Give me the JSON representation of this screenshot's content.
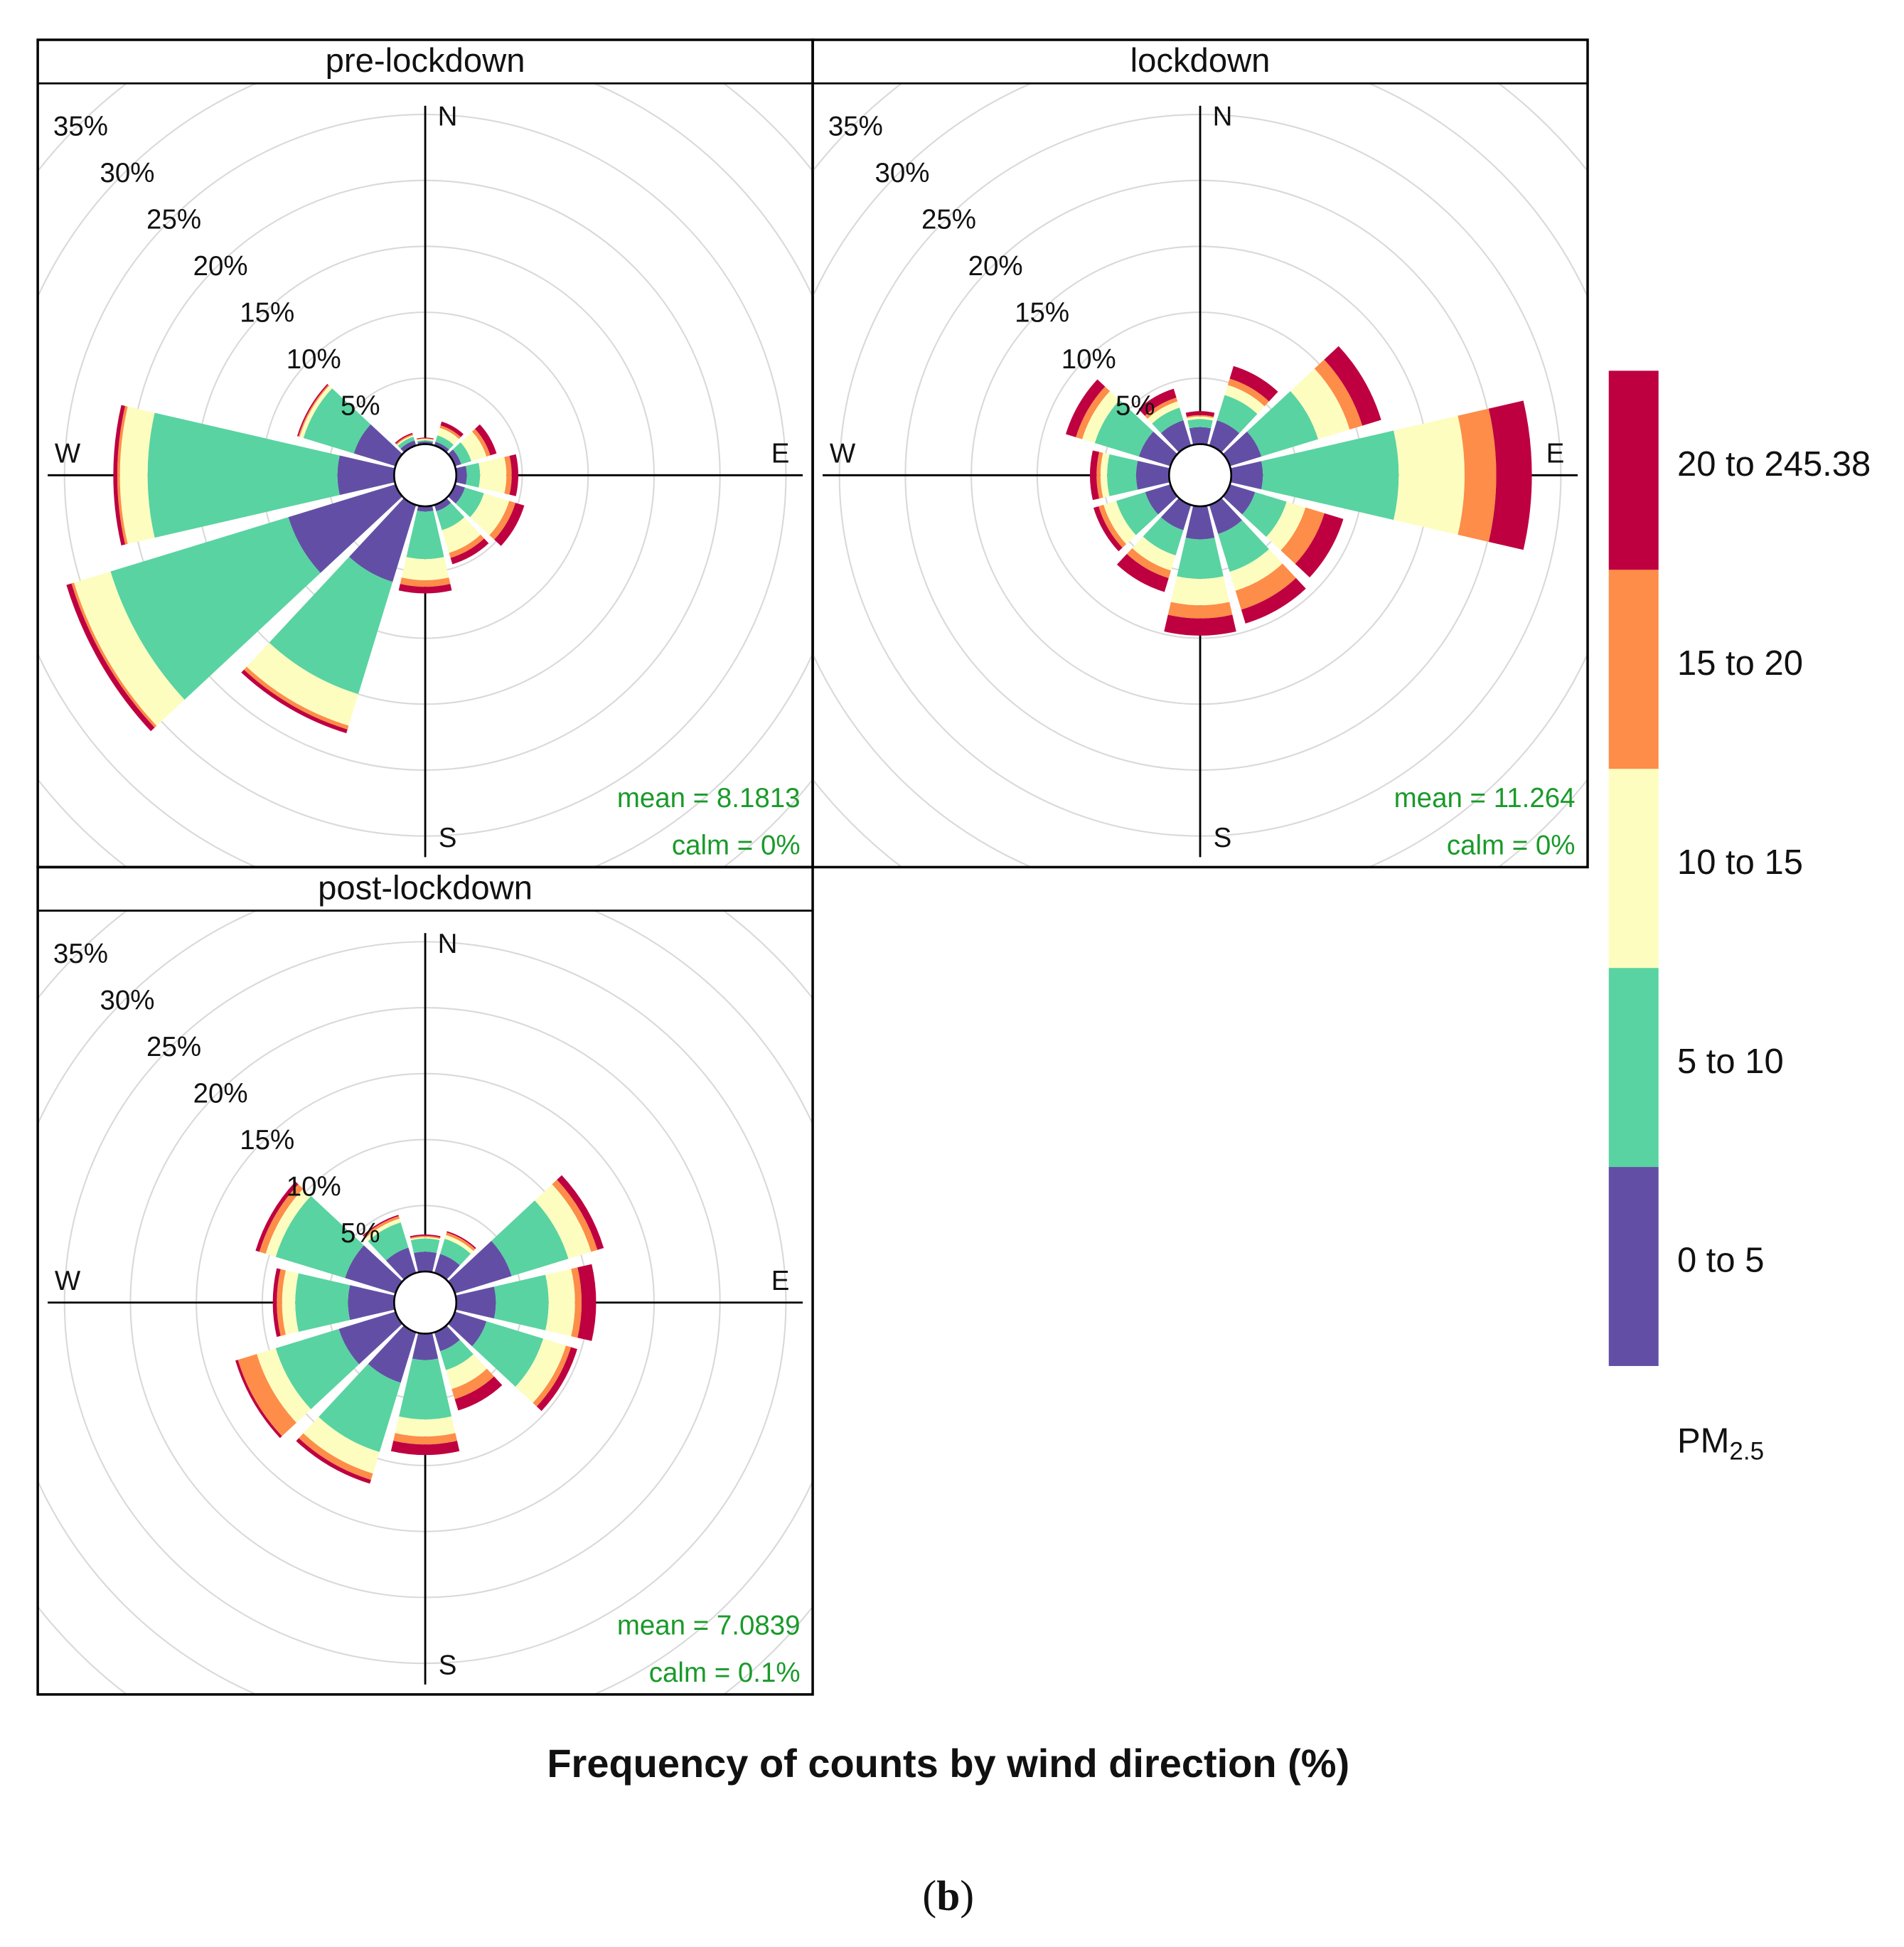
{
  "chart_data": {
    "type": "wind_rose",
    "caption": "Frequency of counts by wind direction (%)",
    "figure_label": "b",
    "directions": [
      0,
      30,
      60,
      90,
      120,
      150,
      180,
      210,
      240,
      270,
      300,
      330
    ],
    "direction_labels": [
      "N",
      "E",
      "S",
      "W"
    ],
    "rlim": [
      0,
      35
    ],
    "rticks": [
      {
        "value": 5,
        "label": "5%"
      },
      {
        "value": 10,
        "label": "10%"
      },
      {
        "value": 15,
        "label": "15%"
      },
      {
        "value": 20,
        "label": "20%"
      },
      {
        "value": 25,
        "label": "25%"
      },
      {
        "value": 30,
        "label": "30%"
      },
      {
        "value": 35,
        "label": "35%"
      }
    ],
    "legend_title": "PM",
    "legend_title_sub": "2.5",
    "series": [
      {
        "name": "0 to 5",
        "color": "#624fa5"
      },
      {
        "name": "5 to 10",
        "color": "#59d3a1"
      },
      {
        "name": "10 to 15",
        "color": "#fdfdc0"
      },
      {
        "name": "15 to 20",
        "color": "#fd8d48"
      },
      {
        "name": "20 to 245.38",
        "color": "#be0040"
      }
    ],
    "panels": [
      {
        "title": "pre-lockdown",
        "mean": "mean = 8.1813",
        "calm": "calm = 0%",
        "values": [
          [
            0.2,
            0.3,
            0.5,
            0.8,
            0.8,
            0.5,
            0.4,
            6.1,
            8.5,
            4.3,
            3.3,
            0.4
          ],
          [
            0.1,
            0.5,
            0.8,
            1.0,
            1.5,
            1.5,
            3.6,
            8.9,
            14.1,
            14.4,
            4.0,
            0.3
          ],
          [
            0.1,
            0.6,
            1.2,
            2.0,
            2.0,
            1.8,
            1.6,
            2.5,
            2.9,
            2.1,
            0.3,
            0.1
          ],
          [
            0.05,
            0.2,
            0.3,
            0.4,
            0.5,
            0.4,
            0.5,
            0.3,
            0.2,
            0.2,
            0.1,
            0.1
          ],
          [
            0.05,
            0.3,
            0.5,
            0.5,
            0.7,
            0.5,
            0.5,
            0.3,
            0.4,
            0.3,
            0.1,
            0.1
          ]
        ]
      },
      {
        "title": "lockdown",
        "mean": "mean = 11.264",
        "calm": "calm = 0%",
        "values": [
          [
            1.3,
            2.0,
            2.5,
            2.4,
            2.0,
            2.3,
            2.5,
            2.0,
            2.0,
            2.5,
            2.5,
            2.0
          ],
          [
            0.6,
            2.0,
            4.5,
            10.3,
            2.5,
            3.0,
            3.0,
            2.0,
            2.3,
            2.2,
            3.5,
            1.0
          ],
          [
            0.2,
            0.8,
            2.5,
            5.0,
            1.5,
            1.5,
            2.0,
            1.2,
            1.0,
            0.5,
            1.0,
            0.5
          ],
          [
            0.1,
            0.5,
            1.0,
            2.4,
            1.5,
            1.5,
            1.0,
            0.6,
            0.4,
            0.3,
            0.5,
            0.3
          ],
          [
            0.3,
            1.0,
            1.5,
            2.7,
            1.5,
            1.1,
            1.3,
            1.1,
            0.4,
            0.5,
            0.8,
            0.7
          ]
        ]
      },
      {
        "title": "post-lockdown",
        "mean": "mean = 7.0839",
        "calm": "calm = 0.1%",
        "values": [
          [
            1.5,
            1.5,
            4.5,
            3.0,
            2.5,
            1.5,
            2.0,
            4.0,
            4.5,
            3.5,
            4.0,
            2.0
          ],
          [
            1.0,
            1.2,
            4.5,
            4.0,
            4.5,
            1.5,
            4.5,
            5.5,
            5.0,
            4.0,
            5.5,
            2.0
          ],
          [
            0.1,
            0.3,
            1.8,
            2.0,
            1.8,
            1.5,
            1.3,
            1.7,
            1.5,
            1.0,
            0.8,
            0.3
          ],
          [
            0.1,
            0.2,
            0.5,
            0.5,
            0.4,
            0.8,
            0.6,
            0.5,
            1.5,
            0.4,
            0.5,
            0.2
          ],
          [
            0.1,
            0.1,
            0.5,
            1.1,
            0.5,
            0.9,
            0.8,
            0.3,
            0.2,
            0.3,
            0.3,
            0.1
          ]
        ]
      }
    ]
  }
}
